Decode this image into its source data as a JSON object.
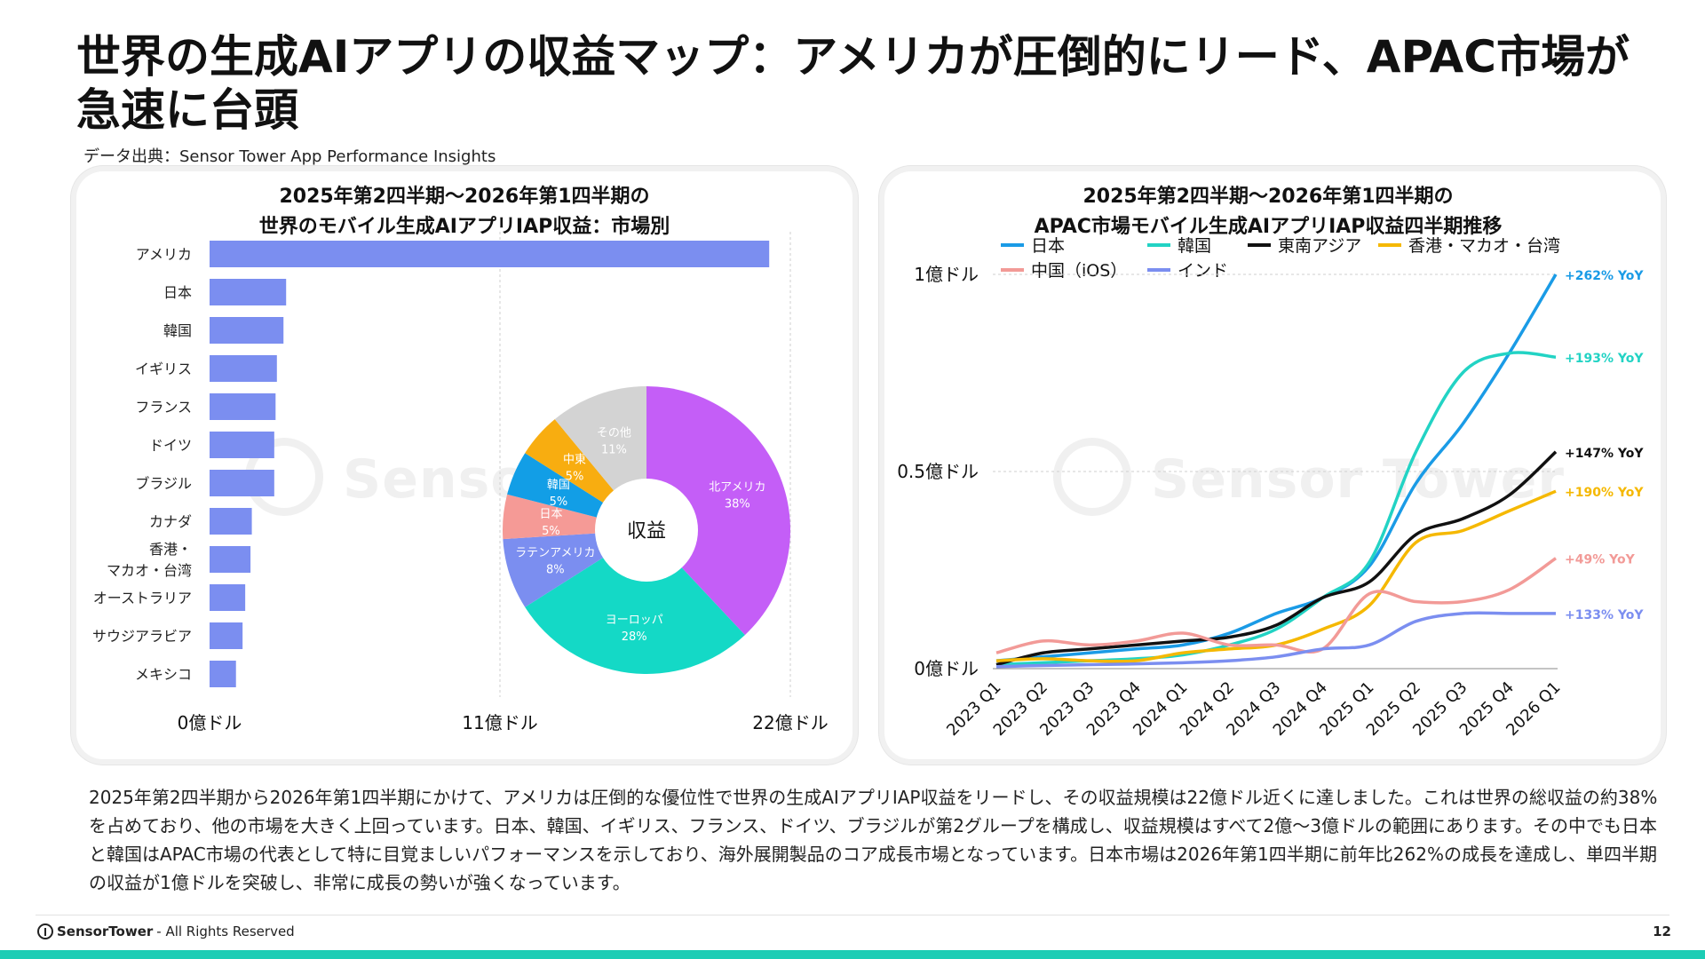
{
  "page": {
    "title": "世界の生成AIアプリの収益マップ：アメリカが圧倒的にリード、APAC市場が急速に台頭",
    "source": "データ出典：Sensor Tower App Performance Insights",
    "watermark": "Sensor Tower",
    "body_text": "2025年第2四半期から2026年第1四半期にかけて、アメリカは圧倒的な優位性で世界の生成AIアプリIAP収益をリードし、その収益規模は22億ドル近くに達しました。これは世界の総収益の約38%を占めており、他の市場を大きく上回っています。日本、韓国、イギリス、フランス、ドイツ、ブラジルが第2グループを構成し、収益規模はすべて2億〜3億ドルの範囲にあります。その中でも日本と韓国はAPAC市場の代表として特に目覚ましいパフォーマンスを示しており、海外展開製品のコア成長市場となっています。日本市場は2026年第1四半期に前年比262%の成長を達成し、単四半期の収益が1億ドルを突破し、非常に成長の勢いが強くなっています。",
    "footer_brand": "SensorTower",
    "footer_rights": "- All Rights Reserved",
    "page_number": "12"
  },
  "chart_data": [
    {
      "type": "bar",
      "orientation": "horizontal",
      "title": "2025年第2四半期～2026年第1四半期の\n世界のモバイル生成AIアプリIAP収益：市場別",
      "categories": [
        "アメリカ",
        "日本",
        "韓国",
        "イギリス",
        "フランス",
        "ドイツ",
        "ブラジル",
        "カナダ",
        "香港・\nマカオ・台湾",
        "オーストラリア",
        "サウジアラビア",
        "メキシコ"
      ],
      "values": [
        21.2,
        2.9,
        2.8,
        2.55,
        2.5,
        2.45,
        2.45,
        1.6,
        1.55,
        1.35,
        1.25,
        1.0
      ],
      "unit": "億ドル",
      "xlim": [
        0,
        22
      ],
      "xticks": [
        0,
        11,
        22
      ],
      "xtick_labels": [
        "0億ドル",
        "11億ドル",
        "22億ドル"
      ],
      "bar_color": "#7b8ef0",
      "grid": "vertical dashed"
    },
    {
      "type": "pie",
      "donut": true,
      "center_label": "収益",
      "slices": [
        {
          "label": "北アメリカ",
          "pct_label": "38%",
          "value": 38,
          "color": "#c45ef7"
        },
        {
          "label": "ヨーロッパ",
          "pct_label": "28%",
          "value": 28,
          "color": "#14d9c6"
        },
        {
          "label": "ラテンアメリカ",
          "pct_label": "8%",
          "value": 8,
          "color": "#7b8ef0"
        },
        {
          "label": "日本",
          "pct_label": "5%",
          "value": 5,
          "color": "#f59a96"
        },
        {
          "label": "韓国",
          "pct_label": "5%",
          "value": 5,
          "color": "#129ee6"
        },
        {
          "label": "中東",
          "pct_label": "5%",
          "value": 5,
          "color": "#f8ad10"
        },
        {
          "label": "その他",
          "pct_label": "11%",
          "value": 11,
          "color": "#d3d3d3"
        }
      ]
    },
    {
      "type": "line",
      "title": "2025年第2四半期～2026年第1四半期の\nAPAC市場モバイル生成AIアプリIAP収益四半期推移",
      "x": [
        "2023 Q1",
        "2023 Q2",
        "2023 Q3",
        "2023 Q4",
        "2024 Q1",
        "2024 Q2",
        "2024 Q3",
        "2024 Q4",
        "2025 Q1",
        "2025 Q2",
        "2025 Q3",
        "2025 Q4",
        "2026 Q1"
      ],
      "ylim": [
        0,
        1
      ],
      "yticks": [
        0,
        0.5,
        1
      ],
      "ytick_labels": [
        "0億ドル",
        "0.5億ドル",
        "1億ドル"
      ],
      "legend_position": "top",
      "series": [
        {
          "name": "日本",
          "color": "#1a9be6",
          "end_label": "+262% YoY",
          "values": [
            0.02,
            0.03,
            0.04,
            0.05,
            0.06,
            0.09,
            0.14,
            0.18,
            0.26,
            0.47,
            0.62,
            0.8,
            1.0
          ]
        },
        {
          "name": "韓国",
          "color": "#22d3c4",
          "end_label": "+193% YoY",
          "values": [
            0.01,
            0.015,
            0.02,
            0.025,
            0.035,
            0.06,
            0.1,
            0.18,
            0.27,
            0.55,
            0.75,
            0.8,
            0.79
          ]
        },
        {
          "name": "東南アジア",
          "color": "#111111",
          "end_label": "+147% YoY",
          "values": [
            0.01,
            0.04,
            0.05,
            0.06,
            0.07,
            0.08,
            0.11,
            0.18,
            0.22,
            0.34,
            0.38,
            0.44,
            0.55
          ]
        },
        {
          "name": "香港・マカオ・台湾",
          "color": "#f5b800",
          "end_label": "+190% YoY",
          "values": [
            0.02,
            0.025,
            0.02,
            0.02,
            0.04,
            0.05,
            0.06,
            0.1,
            0.16,
            0.32,
            0.35,
            0.4,
            0.45
          ]
        },
        {
          "name": "中国（iOS）",
          "color": "#f29a97",
          "end_label": "+49% YoY",
          "values": [
            0.04,
            0.07,
            0.06,
            0.07,
            0.09,
            0.06,
            0.06,
            0.05,
            0.19,
            0.17,
            0.17,
            0.2,
            0.28
          ]
        },
        {
          "name": "インド",
          "color": "#7b8ef0",
          "end_label": "+133% YoY",
          "values": [
            0.005,
            0.008,
            0.01,
            0.012,
            0.015,
            0.02,
            0.03,
            0.05,
            0.06,
            0.12,
            0.14,
            0.14,
            0.14
          ]
        }
      ]
    }
  ]
}
